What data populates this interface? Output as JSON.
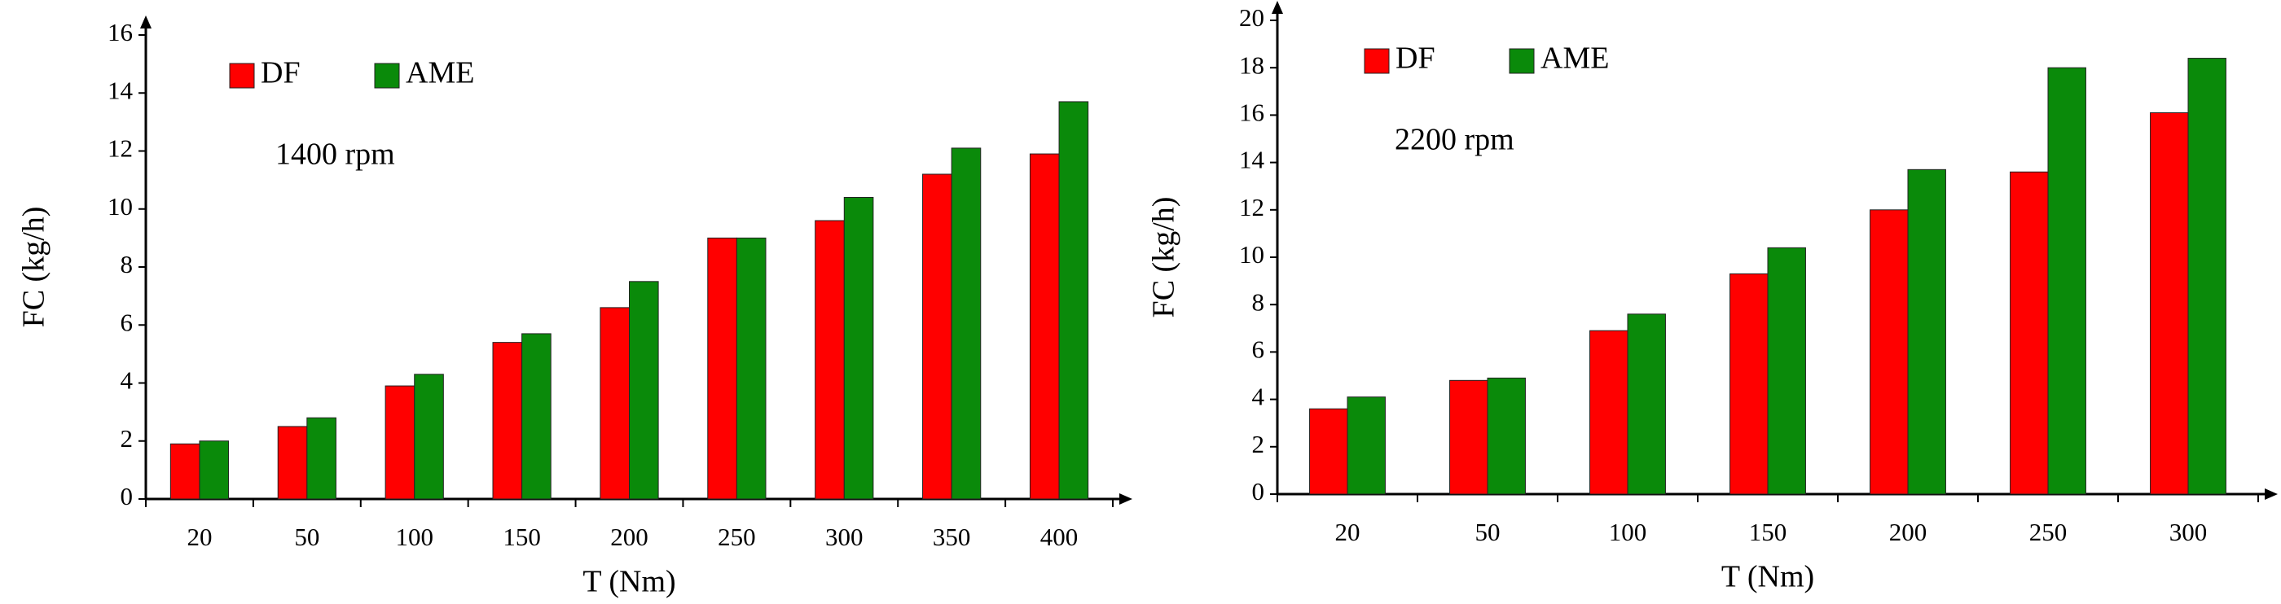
{
  "chart_data": [
    {
      "type": "bar",
      "annotation": "1400 rpm",
      "x_label": "T (Nm)",
      "y_label": "FC (kg/h)",
      "categories": [
        "20",
        "50",
        "100",
        "150",
        "200",
        "250",
        "300",
        "350",
        "400"
      ],
      "series": [
        {
          "name": "DF",
          "color": "#ff0000",
          "values": [
            1.9,
            2.5,
            3.9,
            5.4,
            6.6,
            9.0,
            9.6,
            11.2,
            11.9
          ]
        },
        {
          "name": "AME",
          "color": "#0a8a0a",
          "values": [
            2.0,
            2.8,
            4.3,
            5.7,
            7.5,
            9.0,
            10.4,
            12.1,
            13.7
          ]
        }
      ],
      "ylim": [
        0,
        16
      ],
      "yticks": [
        0,
        2,
        4,
        6,
        8,
        10,
        12,
        14,
        16
      ]
    },
    {
      "type": "bar",
      "annotation": "2200 rpm",
      "x_label": "T (Nm)",
      "y_label": "FC (kg/h)",
      "categories": [
        "20",
        "50",
        "100",
        "150",
        "200",
        "250",
        "300"
      ],
      "series": [
        {
          "name": "DF",
          "color": "#ff0000",
          "values": [
            3.6,
            4.8,
            6.9,
            9.3,
            12.0,
            13.6,
            16.1
          ]
        },
        {
          "name": "AME",
          "color": "#0a8a0a",
          "values": [
            4.1,
            4.9,
            7.6,
            10.4,
            13.7,
            18.0,
            18.4
          ]
        }
      ],
      "ylim": [
        0,
        20
      ],
      "yticks": [
        0,
        2,
        4,
        6,
        8,
        10,
        12,
        14,
        16,
        18,
        20
      ]
    }
  ]
}
